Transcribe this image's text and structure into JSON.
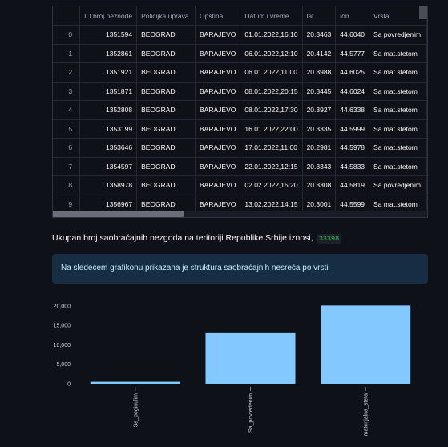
{
  "table": {
    "columns": [
      "",
      "ID broj neznode",
      "Policijka uprava",
      "Opština",
      "Datum i vreme",
      "lat",
      "lon",
      "Vrsta"
    ],
    "rows": [
      [
        "0",
        "1351594",
        "BEOGRAD",
        "BARAJEVO",
        "01.01.2022,16:10",
        "20.3463",
        "44.6040",
        "Sa povredjenim"
      ],
      [
        "1",
        "1352861",
        "BEOGRAD",
        "BARAJEVO",
        "06.01.2022,12:10",
        "20.4142",
        "44.5777",
        "Sa mat.stetom"
      ],
      [
        "2",
        "1351921",
        "BEOGRAD",
        "BARAJEVO",
        "06.01.2022,11:00",
        "20.3988",
        "44.6025",
        "Sa mat.stetom"
      ],
      [
        "3",
        "1351871",
        "BEOGRAD",
        "BARAJEVO",
        "08.01.2022,20:15",
        "20.3445",
        "44.6024",
        "Sa mat.stetom"
      ],
      [
        "4",
        "1352808",
        "BEOGRAD",
        "BARAJEVO",
        "08.01.2022,17:30",
        "20.3927",
        "44.6338",
        "Sa mat.stetom"
      ],
      [
        "5",
        "1353199",
        "BEOGRAD",
        "BARAJEVO",
        "16.01.2022,22:00",
        "20.3335",
        "44.5999",
        "Sa mat.stetom"
      ],
      [
        "6",
        "1353646",
        "BEOGRAD",
        "BARAJEVO",
        "17.01.2022,11:00",
        "20.2981",
        "44.5978",
        "Sa mat.stetom"
      ],
      [
        "7",
        "1354597",
        "BEOGRAD",
        "BARAJEVO",
        "22.01.2022,12:15",
        "20.3343",
        "44.5833",
        "Sa mat.stetom"
      ],
      [
        "8",
        "1358978",
        "BEOGRAD",
        "BARAJEVO",
        "02.02.2022,15:20",
        "20.3308",
        "44.5819",
        "Sa povredjenim"
      ],
      [
        "9",
        "1356967",
        "BEOGRAD",
        "BARAJEVO",
        "13.02.2022,14:15",
        "20.3001",
        "44.5599",
        "Sa mat.stetom"
      ]
    ]
  },
  "total": {
    "text": "Ukupan broj saobraćajnih nezgoda na teritoriji Republike Srbije iznosi,",
    "value": "33398"
  },
  "info": {
    "text": "Na sledećem grafikonu prikazana je struktura saobraćajnih nesreća po vrsti"
  },
  "colors": {
    "bar": "#83c9ff",
    "info_bg": "#172d43",
    "info_text": "#c7ebff",
    "value_green": "#21c354"
  },
  "chart_data": {
    "type": "bar",
    "categories": [
      "Sa_poginulim",
      "Sa_povredenim",
      "materijalna_steta"
    ],
    "values": [
      500,
      13000,
      20100
    ],
    "yticks": [
      "0",
      "5,000",
      "10,000",
      "15,000",
      "20,000"
    ],
    "ylim": [
      0,
      21000
    ],
    "grid": false
  }
}
